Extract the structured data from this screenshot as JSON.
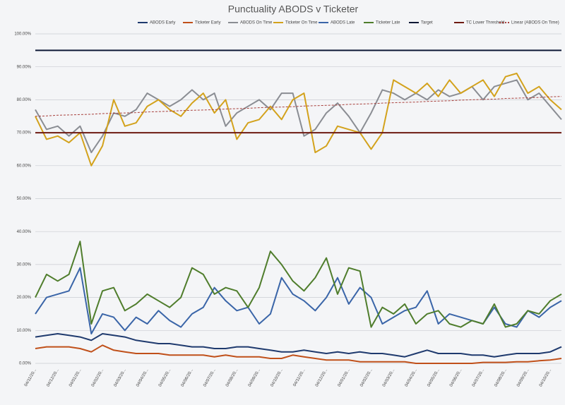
{
  "chart_data": {
    "type": "line",
    "title": "Punctuality ABODS v Ticketer",
    "categories": [
      "04/11/20...",
      null,
      "04/12/20...",
      null,
      "04/01/20...",
      null,
      "04/02/20...",
      null,
      "04/03/20...",
      null,
      "04/04/20...",
      null,
      "04/05/20...",
      null,
      "04/06/20...",
      null,
      "04/07/20...",
      null,
      "04/08/20...",
      null,
      "04/09/20...",
      null,
      "04/10/20...",
      null,
      "04/11/20...",
      null,
      "04/12/20...",
      null,
      "04/01/20...",
      null,
      "04/02/20...",
      null,
      "04/03/20...",
      null,
      "04/04/20...",
      null,
      "04/05/20...",
      null,
      "04/06/20...",
      null,
      "04/07/20...",
      null,
      "04/08/20...",
      null,
      "04/09/20...",
      null,
      "04/10/20...",
      null
    ],
    "series": [
      {
        "name": "ABODS Early",
        "color": "#1f3a6e",
        "values": [
          8,
          8.5,
          9,
          8.5,
          8,
          7,
          9,
          8.5,
          8,
          7,
          6.5,
          6,
          6,
          5.5,
          5,
          5,
          4.5,
          4.5,
          5,
          5,
          4.5,
          4,
          3.5,
          3.5,
          4,
          3.5,
          3,
          3.5,
          3,
          3.5,
          3,
          3,
          2.5,
          2,
          3,
          4,
          3,
          3,
          3,
          2.5,
          2.5,
          2,
          2.5,
          3,
          3,
          3,
          3.5,
          5
        ]
      },
      {
        "name": "Ticketer Early",
        "color": "#c0501a",
        "values": [
          4.5,
          5,
          5,
          5,
          4.5,
          3.5,
          5.5,
          4,
          3.5,
          3,
          3,
          3,
          2.5,
          2.5,
          2.5,
          2.5,
          2,
          2.5,
          2,
          2,
          2,
          1.5,
          1.5,
          2.5,
          2,
          1.5,
          1,
          1,
          1,
          0.5,
          0.5,
          0.5,
          0.5,
          0.5,
          0,
          0,
          0,
          0,
          0,
          0,
          0.3,
          0.3,
          0.3,
          0.5,
          0.5,
          0.8,
          1,
          1.5
        ]
      },
      {
        "name": "ABODS On Time",
        "color": "#8a8d93",
        "values": [
          77,
          71,
          72,
          69,
          72,
          64,
          69,
          76,
          75,
          77,
          82,
          80,
          78,
          80,
          83,
          80,
          82,
          72,
          76,
          78,
          80,
          77,
          82,
          82,
          69,
          71,
          76,
          79,
          75,
          70,
          76,
          83,
          82,
          80,
          82,
          80,
          83,
          81,
          82,
          84,
          80,
          84,
          85,
          86,
          80,
          82,
          78,
          74
        ]
      },
      {
        "name": "Ticketer On Time",
        "color": "#d3a21c",
        "values": [
          75,
          68,
          69,
          67,
          70,
          60,
          66,
          80,
          72,
          73,
          78,
          80,
          77,
          75,
          79,
          82,
          76,
          80,
          68,
          73,
          74,
          78,
          74,
          80,
          82,
          64,
          66,
          72,
          71,
          70,
          65,
          70,
          86,
          84,
          82,
          85,
          81,
          86,
          82,
          84,
          86,
          81,
          87,
          88,
          82,
          84,
          80,
          77
        ]
      },
      {
        "name": "ABODS Late",
        "color": "#3a65a8",
        "values": [
          15,
          20,
          21,
          22,
          29,
          9,
          15,
          14,
          10,
          14,
          12,
          16,
          13,
          11,
          15,
          17,
          23,
          19,
          16,
          17,
          12,
          15,
          26,
          21,
          19,
          16,
          20,
          26,
          18,
          23,
          20,
          12,
          14,
          16,
          17,
          22,
          12,
          15,
          14,
          13,
          12,
          17,
          12,
          11,
          16,
          14,
          17,
          19
        ]
      },
      {
        "name": "Ticketer Late",
        "color": "#4f7d2c",
        "values": [
          20,
          27,
          25,
          27,
          37,
          12,
          22,
          23,
          16,
          18,
          21,
          19,
          17,
          20,
          29,
          27,
          21,
          23,
          22,
          17,
          23,
          34,
          30,
          25,
          22,
          26,
          32,
          21,
          29,
          28,
          11,
          17,
          15,
          18,
          12,
          15,
          16,
          12,
          11,
          13,
          12,
          18,
          11,
          12,
          16,
          15,
          19,
          21
        ]
      },
      {
        "name": "Target",
        "color": "#0d1835",
        "values": [
          95,
          95,
          95,
          95,
          95,
          95,
          95,
          95,
          95,
          95,
          95,
          95,
          95,
          95,
          95,
          95,
          95,
          95,
          95,
          95,
          95,
          95,
          95,
          95,
          95,
          95,
          95,
          95,
          95,
          95,
          95,
          95,
          95,
          95,
          95,
          95,
          95,
          95,
          95,
          95,
          95,
          95,
          95,
          95,
          95,
          95,
          95,
          95
        ]
      },
      {
        "name": "TC Lower Threshold",
        "color": "#6e1a12",
        "values": [
          70,
          70,
          70,
          70,
          70,
          70,
          70,
          70,
          70,
          70,
          70,
          70,
          70,
          70,
          70,
          70,
          70,
          70,
          70,
          70,
          70,
          70,
          70,
          70,
          70,
          70,
          70,
          70,
          70,
          70,
          70,
          70,
          70,
          70,
          70,
          70,
          70,
          70,
          70,
          70,
          70,
          70,
          70,
          70,
          70,
          70,
          70,
          70
        ]
      },
      {
        "name": "Linear (ABODS On Time)",
        "color": "#a8403c",
        "dashed": true,
        "values": [
          75.0,
          75.1,
          75.3,
          75.4,
          75.5,
          75.6,
          75.8,
          75.9,
          76.0,
          76.1,
          76.3,
          76.4,
          76.5,
          76.7,
          76.8,
          76.9,
          77.0,
          77.2,
          77.3,
          77.4,
          77.6,
          77.7,
          77.8,
          77.9,
          78.1,
          78.2,
          78.3,
          78.4,
          78.6,
          78.7,
          78.8,
          79.0,
          79.1,
          79.2,
          79.3,
          79.5,
          79.6,
          79.7,
          79.9,
          80.0,
          80.1,
          80.2,
          80.4,
          80.5,
          80.6,
          80.7,
          80.9,
          81.0
        ]
      }
    ],
    "ylim": [
      0,
      100
    ],
    "yticks": [
      {
        "value": 0,
        "label": "0.00%"
      },
      {
        "value": 10,
        "label": "10.00%"
      },
      {
        "value": 20,
        "label": "20.00%"
      },
      {
        "value": 30,
        "label": "30.00%"
      },
      {
        "value": 40,
        "label": "40.00%"
      },
      {
        "value": 50,
        "label": "50.00%"
      },
      {
        "value": 60,
        "label": "60.00%"
      },
      {
        "value": 70,
        "label": "70.00%"
      },
      {
        "value": 80,
        "label": "80.00%"
      },
      {
        "value": 90,
        "label": "90.00%"
      },
      {
        "value": 100,
        "label": "100.00%"
      }
    ],
    "grid": true,
    "legend": "top"
  }
}
